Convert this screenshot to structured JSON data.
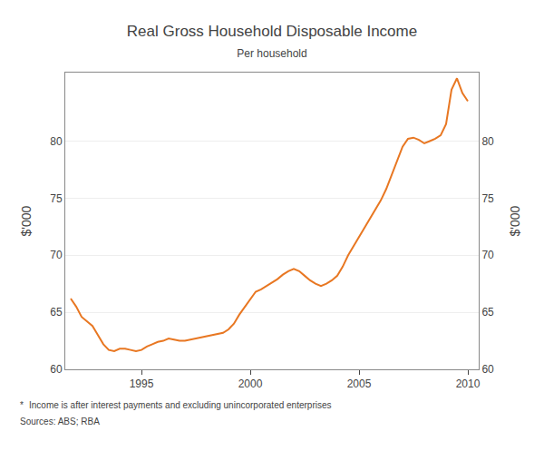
{
  "chart_data": {
    "type": "line",
    "title": "Real Gross Household Disposable Income",
    "subtitle": "Per household",
    "ylabel": "$'000",
    "y2label": "$'000",
    "annotations": [
      "*",
      "Income is after interest payments and excluding unincorporated enterprises",
      "Sources: ABS; RBA"
    ],
    "color": "#E87722",
    "grid": true,
    "xlim": [
      1991.5,
      2010.5
    ],
    "xticks": [
      1995,
      2000,
      2005,
      2010
    ],
    "ylim": [
      60,
      86
    ],
    "yticks": [
      60,
      65,
      70,
      75,
      80
    ],
    "y2lim": [
      60,
      86
    ],
    "y2ticks": [
      60,
      65,
      70,
      75,
      80
    ],
    "x": [
      1991.75,
      1992.0,
      1992.25,
      1992.5,
      1992.75,
      1993.0,
      1993.25,
      1993.5,
      1993.75,
      1994.0,
      1994.25,
      1994.5,
      1994.75,
      1995.0,
      1995.25,
      1995.5,
      1995.75,
      1996.0,
      1996.25,
      1996.5,
      1996.75,
      1997.0,
      1997.25,
      1997.5,
      1997.75,
      1998.0,
      1998.25,
      1998.5,
      1998.75,
      1999.0,
      1999.25,
      1999.5,
      1999.75,
      2000.0,
      2000.25,
      2000.5,
      2000.75,
      2001.0,
      2001.25,
      2001.5,
      2001.75,
      2002.0,
      2002.25,
      2002.5,
      2002.75,
      2003.0,
      2003.25,
      2003.5,
      2003.75,
      2004.0,
      2004.25,
      2004.5,
      2004.75,
      2005.0,
      2005.25,
      2005.5,
      2005.75,
      2006.0,
      2006.25,
      2006.5,
      2006.75,
      2007.0,
      2007.25,
      2007.5,
      2007.75,
      2008.0,
      2008.25,
      2008.5,
      2008.75,
      2009.0,
      2009.25,
      2009.5,
      2009.75,
      2010.0
    ],
    "values": [
      66.2,
      65.5,
      64.6,
      64.2,
      63.8,
      63.0,
      62.2,
      61.7,
      61.6,
      61.8,
      61.8,
      61.7,
      61.6,
      61.7,
      62.0,
      62.2,
      62.4,
      62.5,
      62.7,
      62.6,
      62.5,
      62.5,
      62.6,
      62.7,
      62.8,
      62.9,
      63.0,
      63.1,
      63.2,
      63.5,
      64.0,
      64.8,
      65.5,
      66.2,
      66.8,
      67.0,
      67.3,
      67.6,
      67.9,
      68.3,
      68.6,
      68.8,
      68.6,
      68.2,
      67.8,
      67.5,
      67.3,
      67.5,
      67.8,
      68.2,
      69.0,
      70.0,
      70.8,
      71.5,
      72.3,
      73.2,
      74.0,
      74.8,
      75.8,
      77.0,
      78.2,
      79.5,
      80.2,
      80.3,
      80.1,
      79.8,
      80.0,
      80.2,
      80.5,
      81.5,
      84.5,
      85.5,
      84.2,
      83.5
    ]
  }
}
